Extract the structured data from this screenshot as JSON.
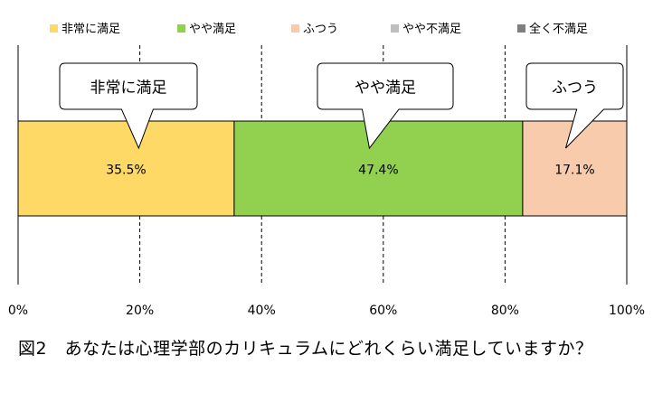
{
  "chart_data": {
    "type": "bar",
    "orientation": "horizontal",
    "stacked": true,
    "series": [
      {
        "name": "非常に満足",
        "value": 35.5,
        "label": "35.5%",
        "color": "#FFD966"
      },
      {
        "name": "やや満足",
        "value": 47.4,
        "label": "47.4%",
        "color": "#92D050"
      },
      {
        "name": "ふつう",
        "value": 17.1,
        "label": "17.1%",
        "color": "#F8CBAD"
      },
      {
        "name": "やや不満足",
        "value": 0,
        "label": "",
        "color": "#BFBFBF"
      },
      {
        "name": "全く不満足",
        "value": 0,
        "label": "",
        "color": "#7F7F7F"
      }
    ],
    "callouts": [
      "非常に満足",
      "やや満足",
      "ふつう"
    ],
    "xlim": [
      0,
      100
    ],
    "xticks": [
      "0%",
      "20%",
      "40%",
      "60%",
      "80%",
      "100%"
    ],
    "grid": "vertical-dashed",
    "legend_position": "top"
  },
  "caption": {
    "figure_no": "図2",
    "text": "あなたは心理学部のカリキュラムにどれくらい満足していますか？"
  }
}
